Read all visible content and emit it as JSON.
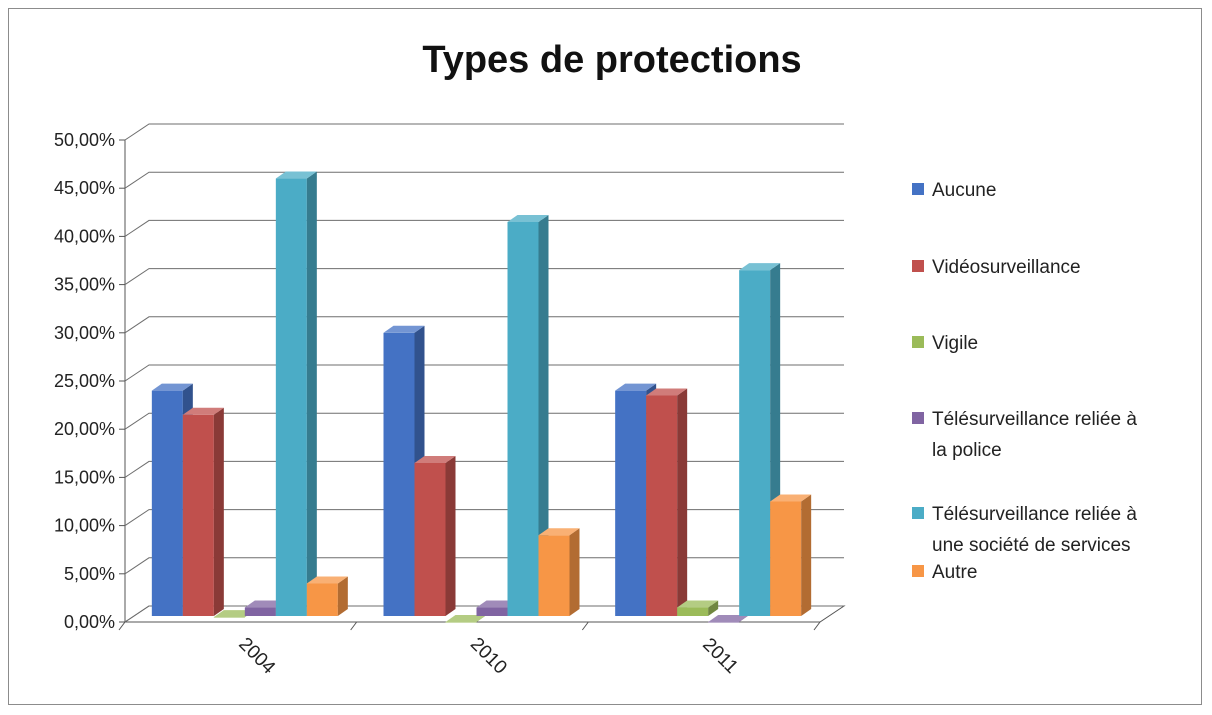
{
  "chart_data": {
    "type": "bar",
    "title": "Types de protections",
    "categories": [
      "2004",
      "2010",
      "2011"
    ],
    "y_tick_labels": [
      "0,00%",
      "5,00%",
      "10,00%",
      "15,00%",
      "20,00%",
      "25,00%",
      "30,00%",
      "35,00%",
      "40,00%",
      "45,00%",
      "50,00%"
    ],
    "ylim": [
      0,
      50
    ],
    "grid": true,
    "legend_position": "right",
    "style": "3d-clustered-column",
    "series": [
      {
        "name": "Aucune",
        "values": [
          24.0,
          30.0,
          24.0
        ],
        "color": "#4472C4"
      },
      {
        "name": "Vidéosurveillance",
        "values": [
          21.5,
          16.5,
          23.5
        ],
        "color": "#C0504D"
      },
      {
        "name": "Vigile",
        "values": [
          0.5,
          0.0,
          1.5
        ],
        "color": "#9BBB59"
      },
      {
        "name": "Télésurveillance reliée à la police",
        "values": [
          1.5,
          1.5,
          0.0
        ],
        "color": "#8064A2"
      },
      {
        "name": "Télésurveillance reliée à une société de services",
        "values": [
          46.0,
          41.5,
          36.5
        ],
        "color": "#4BACC6"
      },
      {
        "name": "Autre",
        "values": [
          4.0,
          9.0,
          12.5
        ],
        "color": "#F79646"
      }
    ],
    "legend_lines": [
      [
        "Aucune"
      ],
      [
        "Vidéosurveillance"
      ],
      [
        "Vigile"
      ],
      [
        "Télésurveillance reliée à",
        "la police"
      ],
      [
        "Télésurveillance reliée à",
        "une société de services"
      ],
      [
        "Autre"
      ]
    ]
  }
}
